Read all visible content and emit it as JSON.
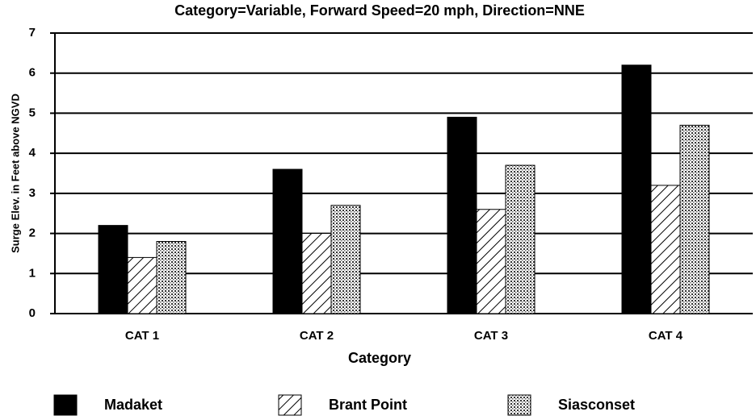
{
  "chart_data": {
    "type": "bar",
    "title": "Category=Variable, Forward Speed=20 mph, Direction=NNE",
    "x_label": "Category",
    "y_label": "Surge Elev. in Feet above NGVD",
    "categories": [
      "CAT 1",
      "CAT 2",
      "CAT 3",
      "CAT 4"
    ],
    "series": [
      {
        "name": "Madaket",
        "color": "#000000",
        "pattern": "solid",
        "values": [
          2.2,
          3.6,
          4.9,
          6.2
        ]
      },
      {
        "name": "Brant Point",
        "color": "#000000",
        "pattern": "hatch",
        "values": [
          1.4,
          2.0,
          2.6,
          3.2
        ]
      },
      {
        "name": "Siasconset",
        "color": "#000000",
        "pattern": "dots",
        "values": [
          1.8,
          2.7,
          3.7,
          4.7
        ]
      }
    ],
    "ylim": [
      0,
      7
    ],
    "yticks": [
      0,
      1,
      2,
      3,
      4,
      5,
      6,
      7
    ],
    "grid": true,
    "legend": "bottom"
  }
}
